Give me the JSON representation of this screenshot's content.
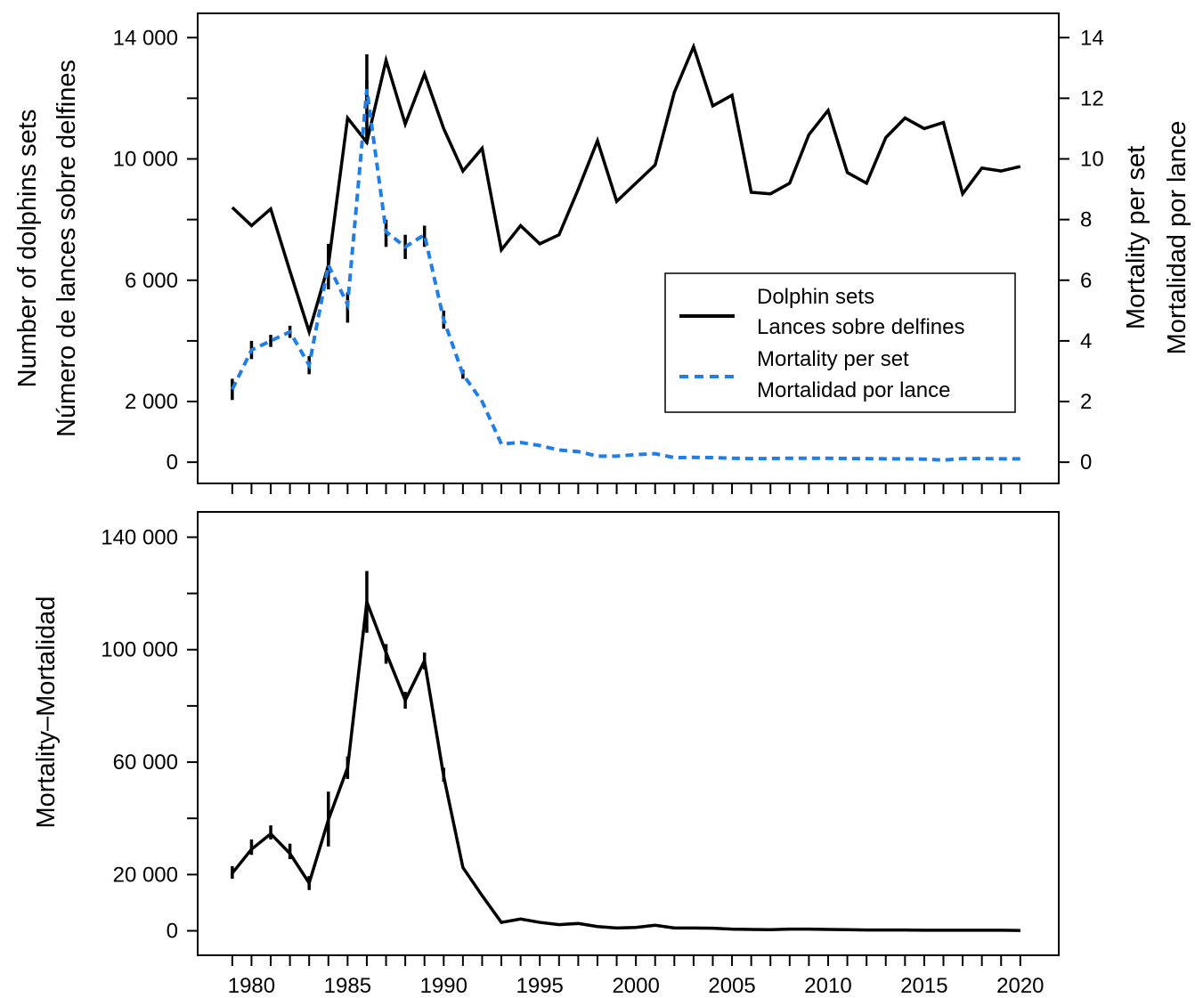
{
  "chart_data": [
    {
      "type": "line",
      "ylabel_left": [
        "Number of dolphins sets",
        "Número de lances sobre delfines"
      ],
      "ylabel_right": [
        "Mortality per set",
        "Mortalidad por lance"
      ],
      "x": [
        1979,
        1980,
        1981,
        1982,
        1983,
        1984,
        1985,
        1986,
        1987,
        1988,
        1989,
        1990,
        1991,
        1992,
        1993,
        1994,
        1995,
        1996,
        1997,
        1998,
        1999,
        2000,
        2001,
        2002,
        2003,
        2004,
        2005,
        2006,
        2007,
        2008,
        2009,
        2010,
        2011,
        2012,
        2013,
        2014,
        2015,
        2016,
        2017,
        2018,
        2019,
        2020
      ],
      "xlim": [
        1977.2,
        2022.0
      ],
      "ylim_left": [
        -700,
        14800
      ],
      "ylim_right": [
        -0.7,
        14.8
      ],
      "y_ticks_left": [
        0,
        2000,
        6000,
        10000,
        14000
      ],
      "y_tick_labels_left": [
        "0",
        "2 000",
        "6 000",
        "10 000",
        "14 000"
      ],
      "y_ticks_left_minor": [
        4000,
        8000,
        12000
      ],
      "y_ticks_right": [
        0,
        2,
        4,
        6,
        8,
        10,
        12,
        14
      ],
      "y_tick_labels_right": [
        "0",
        "2",
        "4",
        "6",
        "8",
        "10",
        "12",
        "14"
      ],
      "series": [
        {
          "name": "Dolphin sets",
          "name2": "Lances sobre delfines",
          "axis": "left",
          "color": "#000000",
          "style": "solid",
          "values": [
            8400,
            7800,
            8350,
            6300,
            4300,
            6500,
            11350,
            10550,
            13250,
            11150,
            12800,
            11000,
            9600,
            10350,
            7000,
            7800,
            7200,
            7500,
            9000,
            10600,
            8600,
            9200,
            9800,
            12200,
            13700,
            11750,
            12100,
            8900,
            8850,
            9200,
            10800,
            11600,
            9550,
            9200,
            10700,
            11350,
            11000,
            11200,
            8850,
            9700,
            9600,
            9750
          ],
          "error": {
            "1986": [
              11800,
              13450
            ]
          }
        },
        {
          "name": "Mortality per set",
          "name2": "Mortalidad por lance",
          "axis": "right",
          "color": "#1f7ee8",
          "style": "dashed",
          "values": [
            2.4,
            3.7,
            4.0,
            4.3,
            3.2,
            6.5,
            5.2,
            12.3,
            7.6,
            7.1,
            7.5,
            4.7,
            2.9,
            2.0,
            0.6,
            0.65,
            0.55,
            0.4,
            0.35,
            0.2,
            0.2,
            0.25,
            0.28,
            0.15,
            0.16,
            0.15,
            0.13,
            0.12,
            0.12,
            0.13,
            0.13,
            0.13,
            0.12,
            0.12,
            0.11,
            0.11,
            0.1,
            0.07,
            0.12,
            0.12,
            0.11,
            0.11
          ],
          "error_low": [
            2.05,
            3.4,
            3.8,
            4.1,
            2.9,
            5.7,
            4.6,
            10.5,
            7.1,
            6.7,
            7.1,
            4.4,
            2.75,
            1.9,
            0.55,
            0.6,
            0.5,
            0.38,
            0.33,
            0.18,
            0.18,
            0.23,
            0.26,
            0.14,
            0.15,
            0.14,
            0.12,
            0.11,
            0.11,
            0.12,
            0.12,
            0.12,
            0.11,
            0.11,
            0.1,
            0.1,
            0.09,
            0.06,
            0.11,
            0.11,
            0.1,
            0.1
          ],
          "error_high": [
            2.75,
            4.0,
            4.2,
            4.5,
            3.5,
            7.2,
            5.6,
            12.6,
            8.0,
            7.5,
            7.8,
            5.0,
            3.05,
            2.1,
            0.65,
            0.7,
            0.6,
            0.42,
            0.37,
            0.22,
            0.22,
            0.27,
            0.3,
            0.16,
            0.17,
            0.16,
            0.14,
            0.13,
            0.13,
            0.14,
            0.14,
            0.14,
            0.13,
            0.13,
            0.12,
            0.12,
            0.11,
            0.08,
            0.13,
            0.13,
            0.12,
            0.12
          ]
        }
      ],
      "legend": {
        "placement": "center-right",
        "entries": [
          {
            "line1": "Dolphin sets",
            "line2": "Lances sobre delfines"
          },
          {
            "line1": "Mortality per set",
            "line2": "Mortalidad por lance"
          }
        ]
      },
      "grid": false
    },
    {
      "type": "line",
      "ylabel": "Mortality–Mortalidad",
      "x": [
        1979,
        1980,
        1981,
        1982,
        1983,
        1984,
        1985,
        1986,
        1987,
        1988,
        1989,
        1990,
        1991,
        1992,
        1993,
        1994,
        1995,
        1996,
        1997,
        1998,
        1999,
        2000,
        2001,
        2002,
        2003,
        2004,
        2005,
        2006,
        2007,
        2008,
        2009,
        2010,
        2011,
        2012,
        2013,
        2014,
        2015,
        2016,
        2017,
        2018,
        2019,
        2020
      ],
      "xlim": [
        1977.2,
        2022.0
      ],
      "ylim": [
        -8700,
        149000
      ],
      "x_ticks": [
        1980,
        1985,
        1990,
        1995,
        2000,
        2005,
        2010,
        2015,
        2020
      ],
      "x_tick_labels": [
        "1980",
        "1985",
        "1990",
        "1995",
        "2000",
        "2005",
        "2010",
        "2015",
        "2020"
      ],
      "y_ticks": [
        0,
        20000,
        60000,
        100000,
        140000
      ],
      "y_tick_labels": [
        "0",
        "20 000",
        "60 000",
        "100 000",
        "140 000"
      ],
      "y_ticks_minor": [
        40000,
        80000,
        120000
      ],
      "series": [
        {
          "color": "#000000",
          "values": [
            20500,
            29000,
            34500,
            27500,
            17000,
            39500,
            58000,
            117000,
            99000,
            82000,
            96000,
            55000,
            22500,
            12500,
            3000,
            4200,
            3000,
            2200,
            2600,
            1500,
            1000,
            1200,
            2000,
            1000,
            1000,
            900,
            600,
            500,
            400,
            600,
            600,
            500,
            400,
            300,
            300,
            300,
            200,
            200,
            200,
            200,
            200,
            100
          ],
          "error_low": [
            18500,
            27000,
            32500,
            25500,
            14500,
            30000,
            54000,
            106000,
            95000,
            79000,
            93000,
            53000,
            21500,
            12000,
            2800,
            4000,
            2800,
            2000,
            2400,
            1400,
            900,
            1100,
            1800,
            900,
            900,
            800,
            500,
            400,
            300,
            500,
            500,
            400,
            300,
            200,
            200,
            200,
            100,
            100,
            100,
            100,
            100,
            50
          ],
          "error_high": [
            23000,
            32500,
            37500,
            31000,
            19500,
            49500,
            62000,
            128000,
            102000,
            85000,
            99000,
            58000,
            23500,
            13000,
            3200,
            4400,
            3200,
            2400,
            2800,
            1600,
            1100,
            1300,
            2200,
            1100,
            1100,
            1000,
            700,
            600,
            500,
            700,
            700,
            600,
            500,
            400,
            400,
            400,
            300,
            300,
            300,
            300,
            300,
            150
          ]
        }
      ],
      "grid": false
    }
  ]
}
